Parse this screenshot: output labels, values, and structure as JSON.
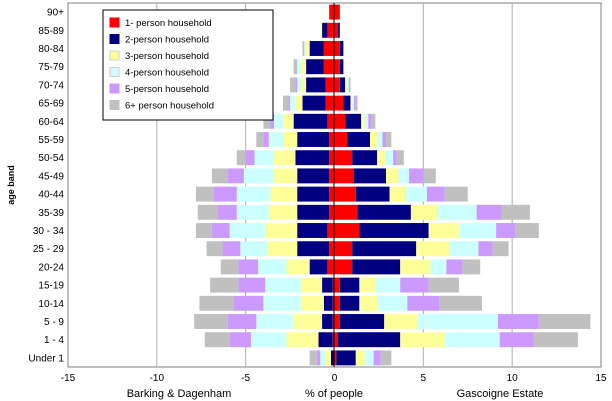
{
  "chart_data": {
    "type": "bar",
    "orientation": "horizontal-stacked-diverging",
    "ylabel": "age band",
    "xlabel": "% of people",
    "left_label": "Barking & Dagenham",
    "right_label": "Gascoigne Estate",
    "xlim": [
      -15,
      15
    ],
    "xticks": [
      "-15",
      "-10",
      "-5",
      "0",
      "5",
      "10",
      "15"
    ],
    "grid": "vertical",
    "legend_position": "top-left",
    "categories": [
      "90+",
      "85-89",
      "80-84",
      "75-79",
      "70-74",
      "65-69",
      "60-64",
      "55-59",
      "50-54",
      "45-49",
      "40-44",
      "35-39",
      "30 - 34",
      "25 - 29",
      "20-24",
      "15-19",
      "10-14",
      "5 - 9",
      "1 - 4",
      "Under 1"
    ],
    "series": [
      {
        "name": "1- person household",
        "color": "#ff0000",
        "left": [
          0.3,
          0.4,
          0.6,
          0.6,
          0.5,
          0.5,
          0.4,
          0.3,
          0.3,
          0.3,
          0.3,
          0.3,
          0.4,
          0.3,
          0.4,
          0.1,
          0.1,
          0.1,
          0.1,
          0.0
        ],
        "right": [
          0.3,
          0.2,
          0.3,
          0.3,
          0.3,
          0.5,
          0.6,
          0.7,
          1.0,
          1.1,
          1.2,
          1.3,
          1.4,
          1.0,
          1.0,
          0.3,
          0.3,
          0.3,
          0.2,
          0.1
        ]
      },
      {
        "name": "2-person household",
        "color": "#000080",
        "left": [
          0.0,
          0.3,
          0.8,
          1.0,
          1.1,
          1.3,
          1.9,
          1.8,
          1.9,
          1.8,
          1.8,
          1.8,
          1.7,
          1.8,
          1.0,
          0.6,
          0.5,
          0.6,
          0.8,
          0.2
        ],
        "right": [
          0.0,
          0.1,
          0.2,
          0.2,
          0.3,
          0.4,
          0.9,
          1.3,
          1.4,
          1.8,
          1.9,
          3.0,
          3.9,
          3.6,
          2.7,
          1.1,
          1.1,
          2.5,
          3.5,
          1.1
        ]
      },
      {
        "name": "3-person household",
        "color": "#ffff99",
        "left": [
          0.0,
          0.1,
          0.2,
          0.3,
          0.3,
          0.4,
          0.6,
          0.8,
          1.2,
          1.3,
          1.5,
          1.6,
          1.8,
          1.7,
          1.3,
          1.2,
          1.3,
          1.6,
          1.8,
          0.3
        ],
        "right": [
          0.0,
          0.0,
          0.0,
          0.0,
          0.1,
          0.1,
          0.2,
          0.4,
          0.5,
          0.7,
          0.9,
          1.5,
          1.7,
          1.9,
          1.7,
          0.9,
          1.0,
          1.9,
          2.5,
          0.5
        ]
      },
      {
        "name": "4-person household",
        "color": "#ccffff",
        "left": [
          0.0,
          0.0,
          0.1,
          0.2,
          0.2,
          0.3,
          0.5,
          0.8,
          1.1,
          1.7,
          1.9,
          1.8,
          2.0,
          1.5,
          1.6,
          2.0,
          2.1,
          2.1,
          2.0,
          0.3
        ],
        "right": [
          0.0,
          0.0,
          0.0,
          0.0,
          0.1,
          0.1,
          0.2,
          0.3,
          0.4,
          0.6,
          1.2,
          2.2,
          2.1,
          1.6,
          0.9,
          1.4,
          1.7,
          4.5,
          3.1,
          0.5
        ]
      },
      {
        "name": "5-person household",
        "color": "#cc99ff",
        "left": [
          0.0,
          0.0,
          0.0,
          0.0,
          0.1,
          0.1,
          0.2,
          0.3,
          0.5,
          0.9,
          1.3,
          1.1,
          1.0,
          1.0,
          1.1,
          1.5,
          1.7,
          1.6,
          1.2,
          0.2
        ],
        "right": [
          0.0,
          0.0,
          0.0,
          0.0,
          0.0,
          0.1,
          0.2,
          0.2,
          0.2,
          0.8,
          1.0,
          1.4,
          1.1,
          0.8,
          0.9,
          1.6,
          1.8,
          2.3,
          1.9,
          0.4
        ]
      },
      {
        "name": "6+ person household",
        "color": "#c0c0c0",
        "left": [
          0.0,
          0.0,
          0.1,
          0.2,
          0.3,
          0.3,
          0.4,
          0.4,
          0.5,
          0.9,
          1.0,
          1.1,
          0.9,
          0.9,
          1.0,
          1.6,
          1.9,
          1.9,
          1.4,
          0.4
        ],
        "right": [
          0.0,
          0.0,
          0.0,
          0.0,
          0.1,
          0.1,
          0.2,
          0.3,
          0.4,
          0.7,
          1.3,
          1.6,
          1.3,
          0.9,
          1.0,
          1.7,
          2.4,
          2.9,
          2.5,
          0.6
        ]
      }
    ]
  }
}
